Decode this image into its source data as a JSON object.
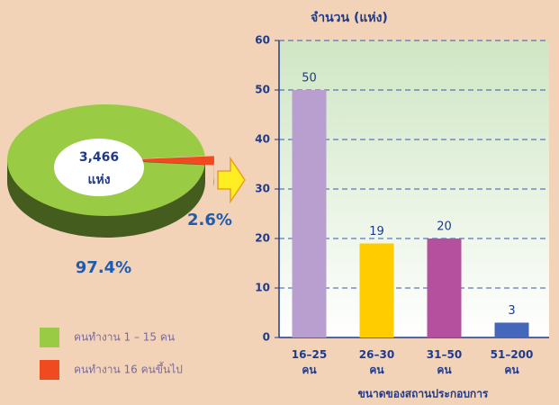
{
  "chart_data": [
    {
      "type": "pie",
      "center_label": "3,466",
      "center_unit": "แห่ง",
      "series": [
        {
          "name": "คนทำงาน 1 – 15 คน",
          "color": "#99cc44"
        },
        {
          "name": "คนทำงาน 16 คนขึ้นไป",
          "color": "#f04a20"
        }
      ],
      "values": [
        97.4,
        2.6
      ],
      "value_labels": [
        "97.4%",
        "2.6%"
      ]
    },
    {
      "type": "bar",
      "y_label": "จำนวน (แห่ง)",
      "x_label": "ขนาดของสถานประกอบการ",
      "categories": [
        "16–25\nคน",
        "26–30\nคน",
        "31–50\nคน",
        "51–200\nคน"
      ],
      "values": [
        50,
        19,
        20,
        3
      ],
      "colors": [
        "#b89fcf",
        "#ffcc00",
        "#b5509f",
        "#4466bb"
      ],
      "ylim": [
        0,
        60
      ],
      "yticks": [
        0,
        10,
        20,
        30,
        40,
        50,
        60
      ],
      "grid": true
    }
  ]
}
